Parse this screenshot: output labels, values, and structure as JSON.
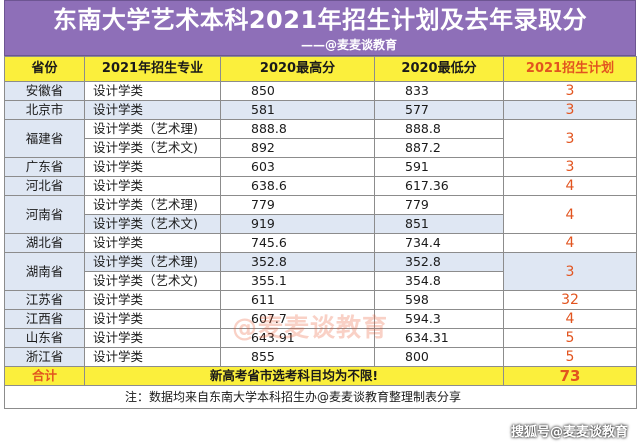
{
  "title": "东南大学艺术本科2021年招生计划及去年录取分",
  "subtitle": "——@麦麦谈教育",
  "columns": [
    "省份",
    "2021年招生专业",
    "2020最高分",
    "2020最低分",
    "2021招生计划"
  ],
  "groups": [
    {
      "province": "安徽省",
      "plan": "3",
      "rows": [
        {
          "major": "设计学类",
          "max": "850",
          "min": "833"
        }
      ]
    },
    {
      "province": "北京市",
      "plan": "3",
      "rows": [
        {
          "major": "设计学类",
          "max": "581",
          "min": "577"
        }
      ]
    },
    {
      "province": "福建省",
      "plan": "3",
      "rows": [
        {
          "major": "设计学类（艺术理)",
          "max": "888.8",
          "min": "888.8"
        },
        {
          "major": "设计学类（艺术文)",
          "max": "892",
          "min": "887.2"
        }
      ]
    },
    {
      "province": "广东省",
      "plan": "3",
      "rows": [
        {
          "major": "设计学类",
          "max": "603",
          "min": "591"
        }
      ]
    },
    {
      "province": "河北省",
      "plan": "4",
      "rows": [
        {
          "major": "设计学类",
          "max": "638.6",
          "min": "617.36"
        }
      ]
    },
    {
      "province": "河南省",
      "plan": "4",
      "rows": [
        {
          "major": "设计学类（艺术理)",
          "max": "779",
          "min": "779"
        },
        {
          "major": "设计学类（艺术文)",
          "max": "919",
          "min": "851"
        }
      ]
    },
    {
      "province": "湖北省",
      "plan": "4",
      "rows": [
        {
          "major": "设计学类",
          "max": "745.6",
          "min": "734.4"
        }
      ]
    },
    {
      "province": "湖南省",
      "plan": "3",
      "rows": [
        {
          "major": "设计学类（艺术理)",
          "max": "352.8",
          "min": "352.8"
        },
        {
          "major": "设计学类（艺术文)",
          "max": "355.1",
          "min": "354.8"
        }
      ]
    },
    {
      "province": "江苏省",
      "plan": "32",
      "rows": [
        {
          "major": "设计学类",
          "max": "611",
          "min": "598"
        }
      ]
    },
    {
      "province": "江西省",
      "plan": "4",
      "rows": [
        {
          "major": "设计学类",
          "max": "607.7",
          "min": "594.3"
        }
      ]
    },
    {
      "province": "山东省",
      "plan": "5",
      "rows": [
        {
          "major": "设计学类",
          "max": "643.91",
          "min": "634.31"
        }
      ]
    },
    {
      "province": "浙江省",
      "plan": "5",
      "rows": [
        {
          "major": "设计学类",
          "max": "855",
          "min": "800"
        }
      ]
    }
  ],
  "total": {
    "label": "合计",
    "remark": "新高考省市选考科目均为不限!",
    "value": "73"
  },
  "note": "注：数据均来自东南大学本科招生办@麦麦谈教育整理制表分享",
  "watermark": "@麦麦谈教育",
  "source_tag": "搜狐号@麦麦谈教育",
  "colors": {
    "header_bg": "#8e6fb8",
    "column_header_bg": "#fbef3c",
    "stripe": "#dfe7f3",
    "plan_text": "#e2541f"
  }
}
